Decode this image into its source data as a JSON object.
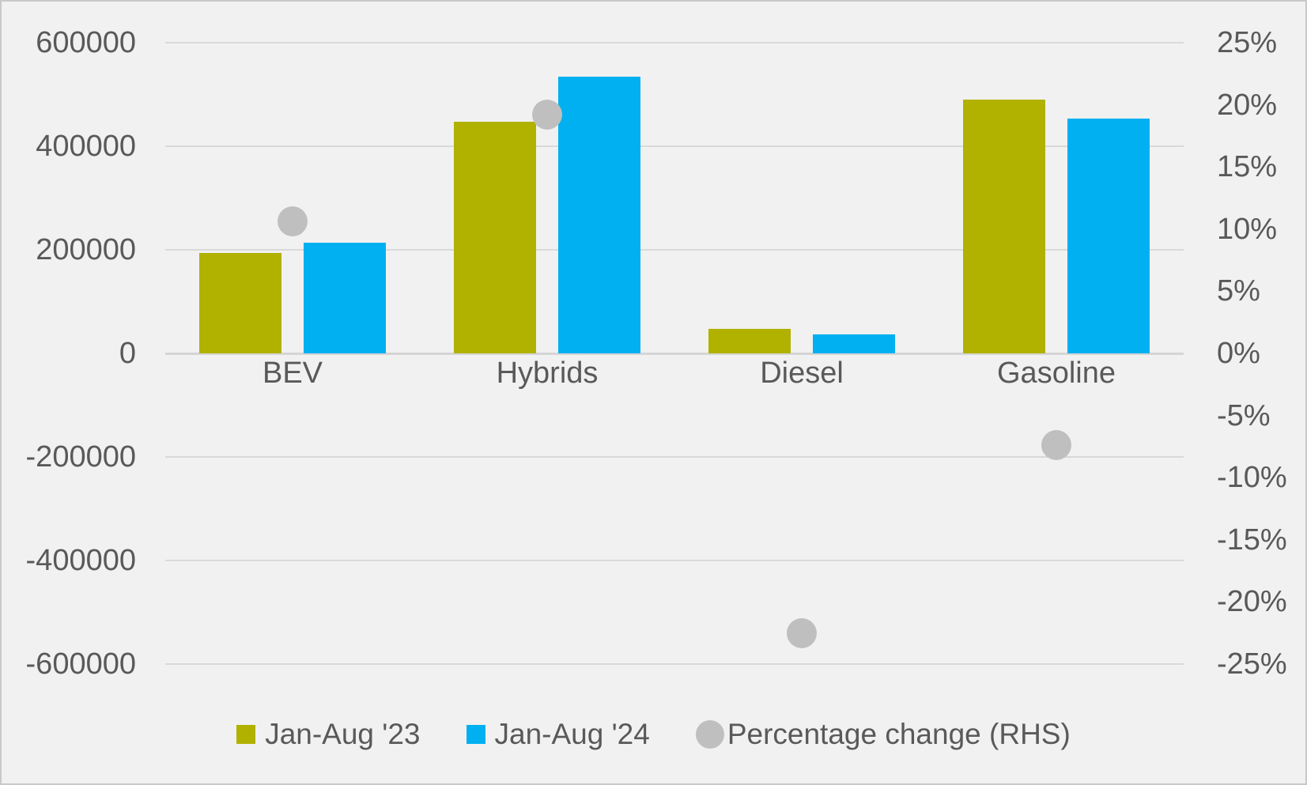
{
  "chart_data": {
    "type": "bar",
    "title": "",
    "categories": [
      "BEV",
      "Hybrids",
      "Diesel",
      "Gasoline"
    ],
    "series": [
      {
        "name": "Jan-Aug '23",
        "kind": "bar",
        "axis": "left",
        "color": "#b1b100",
        "values": [
          194000,
          448000,
          47000,
          490000
        ]
      },
      {
        "name": "Jan-Aug '24",
        "kind": "bar",
        "axis": "left",
        "color": "#00b0f0",
        "values": [
          214000,
          534000,
          36500,
          453000
        ]
      },
      {
        "name": "Percentage change (RHS)",
        "kind": "scatter",
        "axis": "right",
        "color": "#bfbfbf",
        "values": [
          10.6,
          19.2,
          -22.5,
          -7.4
        ]
      }
    ],
    "left_axis": {
      "min": -600000,
      "max": 600000,
      "step": 200000,
      "tick_labels": [
        "600000",
        "400000",
        "200000",
        "0",
        "-200000",
        "-400000",
        "-600000"
      ]
    },
    "right_axis": {
      "min": -25,
      "max": 25,
      "step": 5,
      "tick_labels": [
        "25%",
        "20%",
        "15%",
        "10%",
        "5%",
        "0%",
        "-5%",
        "-10%",
        "-15%",
        "-20%",
        "-25%"
      ]
    },
    "grid": true,
    "legend_position": "bottom",
    "colors": {
      "background": "#f1f1f1",
      "gridline": "#d9d9d9",
      "text": "#595959",
      "frame_border": "#c9c9c9"
    }
  }
}
